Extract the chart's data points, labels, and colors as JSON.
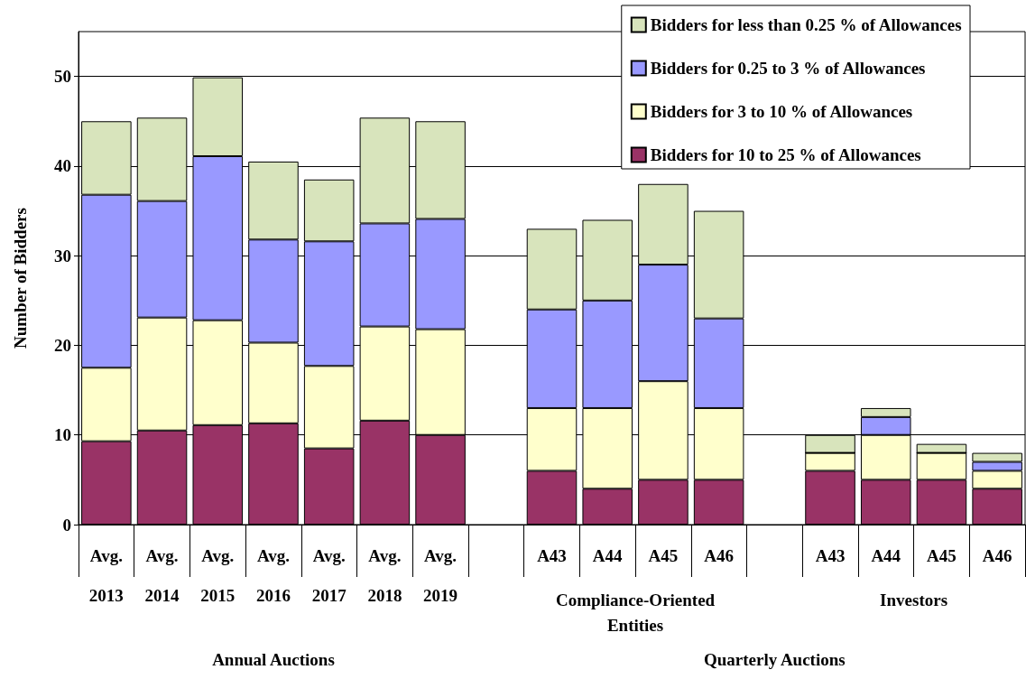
{
  "chart_data": {
    "type": "bar",
    "stacked": true,
    "ylabel": "Number of Bidders",
    "categories": [
      "Avg.\n2013",
      "Avg.\n2014",
      "Avg.\n2015",
      "Avg.\n2016",
      "Avg.\n2017",
      "Avg.\n2018",
      "Avg.\n2019",
      null,
      "A43",
      "A44",
      "A45",
      "A46",
      null,
      "A43",
      "A44",
      "A45",
      "A46"
    ],
    "series": [
      {
        "name": "Bidders for 10 to 25 % of Allowances",
        "color": "#993366",
        "values": [
          9.3,
          10.5,
          11.1,
          11.3,
          8.5,
          11.6,
          10,
          null,
          6,
          4,
          5,
          5,
          null,
          6,
          5,
          5,
          4
        ]
      },
      {
        "name": "Bidders for 3 to 10 % of Allowances",
        "color": "#ffffcc",
        "values": [
          8.2,
          12.6,
          11.7,
          9,
          9.2,
          10.5,
          11.8,
          null,
          7,
          9,
          11,
          8,
          null,
          2,
          5,
          3,
          2
        ]
      },
      {
        "name": "Bidders for 0.25 to 3 % of Allowances",
        "color": "#9999ff",
        "values": [
          19.3,
          13,
          18.3,
          11.5,
          13.9,
          11.5,
          12.3,
          null,
          11,
          12,
          13,
          10,
          null,
          0,
          2,
          0,
          1
        ]
      },
      {
        "name": "Bidders for less than 0.25 % of Allowances",
        "color": "#d8e4bc",
        "values": [
          8.2,
          9.3,
          8.8,
          8.7,
          6.9,
          11.8,
          10.9,
          null,
          9,
          9,
          9,
          12,
          null,
          2,
          1,
          1,
          1
        ]
      }
    ],
    "annotations": [
      "Compliance-Oriented Entities",
      "Investors",
      "Annual Auctions",
      "Quarterly Auctions"
    ],
    "ylim": [
      0,
      55
    ],
    "yticks": [
      0,
      10,
      20,
      30,
      40,
      50
    ],
    "grid": "y",
    "legend": "top right"
  }
}
